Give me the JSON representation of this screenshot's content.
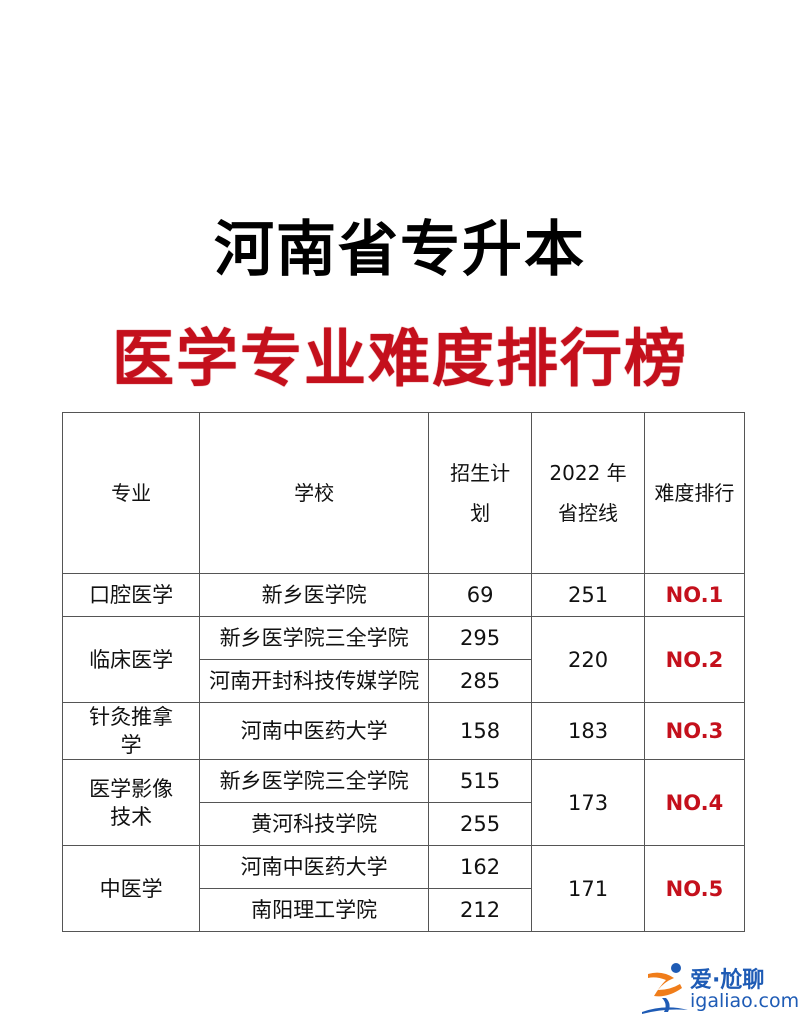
{
  "title": "河南省专升本",
  "subtitle": "医学专业难度排行榜",
  "colors": {
    "title": "#000000",
    "subtitle": "#c4101c",
    "rank": "#c4101c"
  },
  "table": {
    "headers": [
      "专业",
      "学校",
      "招生计划",
      "2022 年省控线",
      "难度排行"
    ],
    "groups": [
      {
        "major": "口腔医学",
        "schools": [
          {
            "name": "新乡医学院",
            "plan": "69"
          }
        ],
        "score": "251",
        "rank": "NO.1"
      },
      {
        "major": "临床医学",
        "schools": [
          {
            "name": "新乡医学院三全学院",
            "plan": "295"
          },
          {
            "name": "河南开封科技传媒学院",
            "plan": "285"
          }
        ],
        "score": "220",
        "rank": "NO.2"
      },
      {
        "major": "针灸推拿学",
        "schools": [
          {
            "name": "河南中医药大学",
            "plan": "158"
          }
        ],
        "score": "183",
        "rank": "NO.3"
      },
      {
        "major": "医学影像技术",
        "schools": [
          {
            "name": "新乡医学院三全学院",
            "plan": "515"
          },
          {
            "name": "黄河科技学院",
            "plan": "255"
          }
        ],
        "score": "173",
        "rank": "NO.4"
      },
      {
        "major": "中医学",
        "schools": [
          {
            "name": "河南中医药大学",
            "plan": "162"
          },
          {
            "name": "南阳理工学院",
            "plan": "212"
          }
        ],
        "score": "171",
        "rank": "NO.5"
      }
    ]
  },
  "watermark": {
    "cn": "爱·尬聊",
    "en": "igaliao.com"
  }
}
